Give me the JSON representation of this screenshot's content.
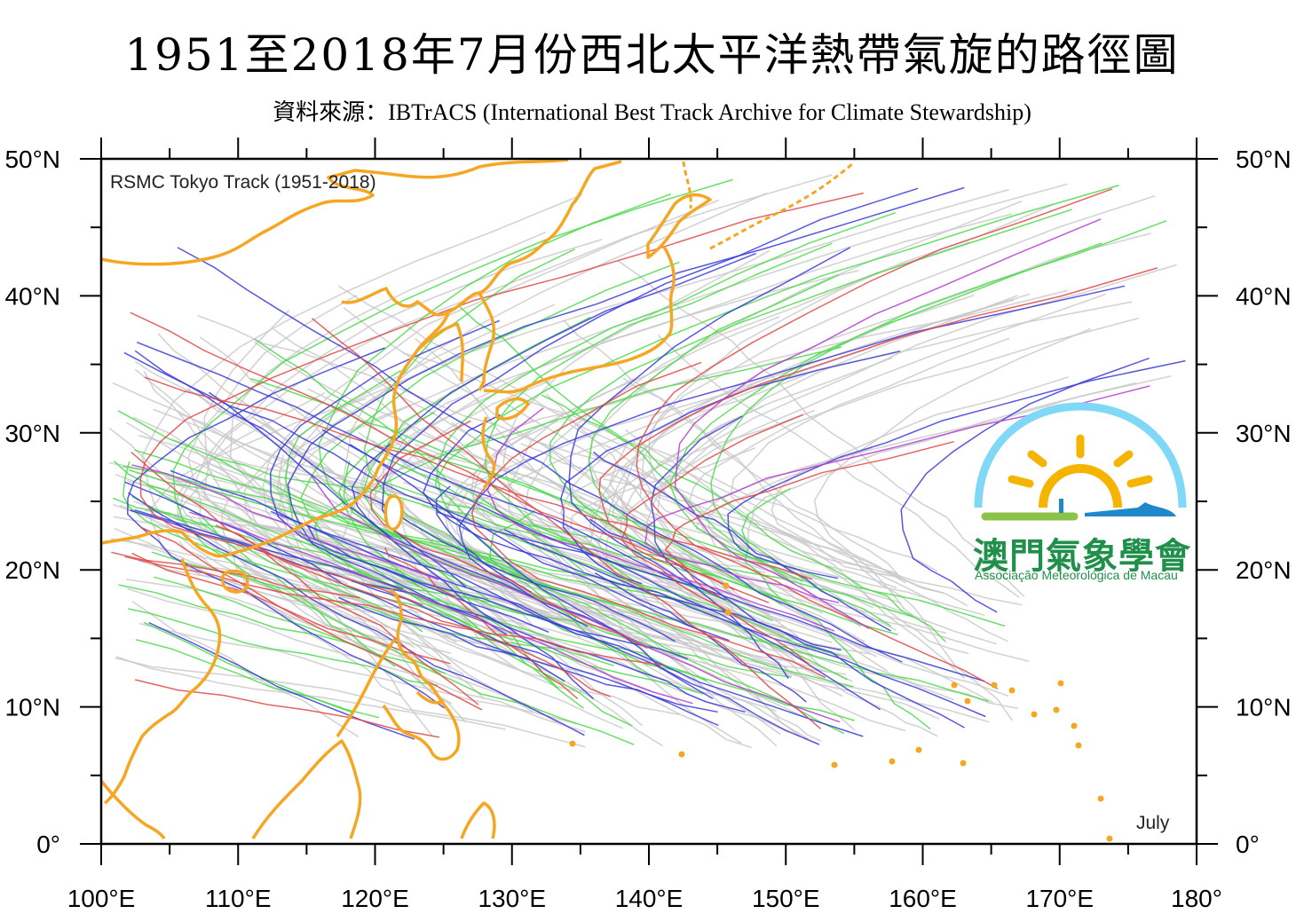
{
  "header": {
    "title": "1951至2018年7月份西北太平洋熱帶氣旋的路徑圖",
    "subtitle": "資料來源：IBTrACS (International Best Track Archive for Climate Stewardship)"
  },
  "map": {
    "inner_title": "RSMC Tokyo Track (1951-2018)",
    "month_label": "July",
    "lat_labels": [
      "0°",
      "10°N",
      "20°N",
      "30°N",
      "40°N",
      "50°N"
    ],
    "lon_labels": [
      "100°E",
      "110°E",
      "120°E",
      "130°E",
      "140°E",
      "150°E",
      "160°E",
      "170°E",
      "180°"
    ],
    "lon_range": [
      100,
      180
    ],
    "lat_range": [
      0,
      50
    ],
    "colors": {
      "coastline": "#f5a623",
      "track_default": "#c8c8c8",
      "track_green": "#4cd94c",
      "track_blue": "#3a3ad9",
      "track_red": "#e04848",
      "track_purple": "#b040d0"
    }
  },
  "logo": {
    "name_cn": "澳門氣象學會",
    "name_pt": "Associação Meteorológica de Macau",
    "icon": "sun-over-sea-logo-icon",
    "colors": {
      "arc": "#7fd8f5",
      "sun": "#f5b400",
      "green": "#8bc34a",
      "blue": "#1e88c8",
      "text": "#1f8f4a"
    }
  }
}
